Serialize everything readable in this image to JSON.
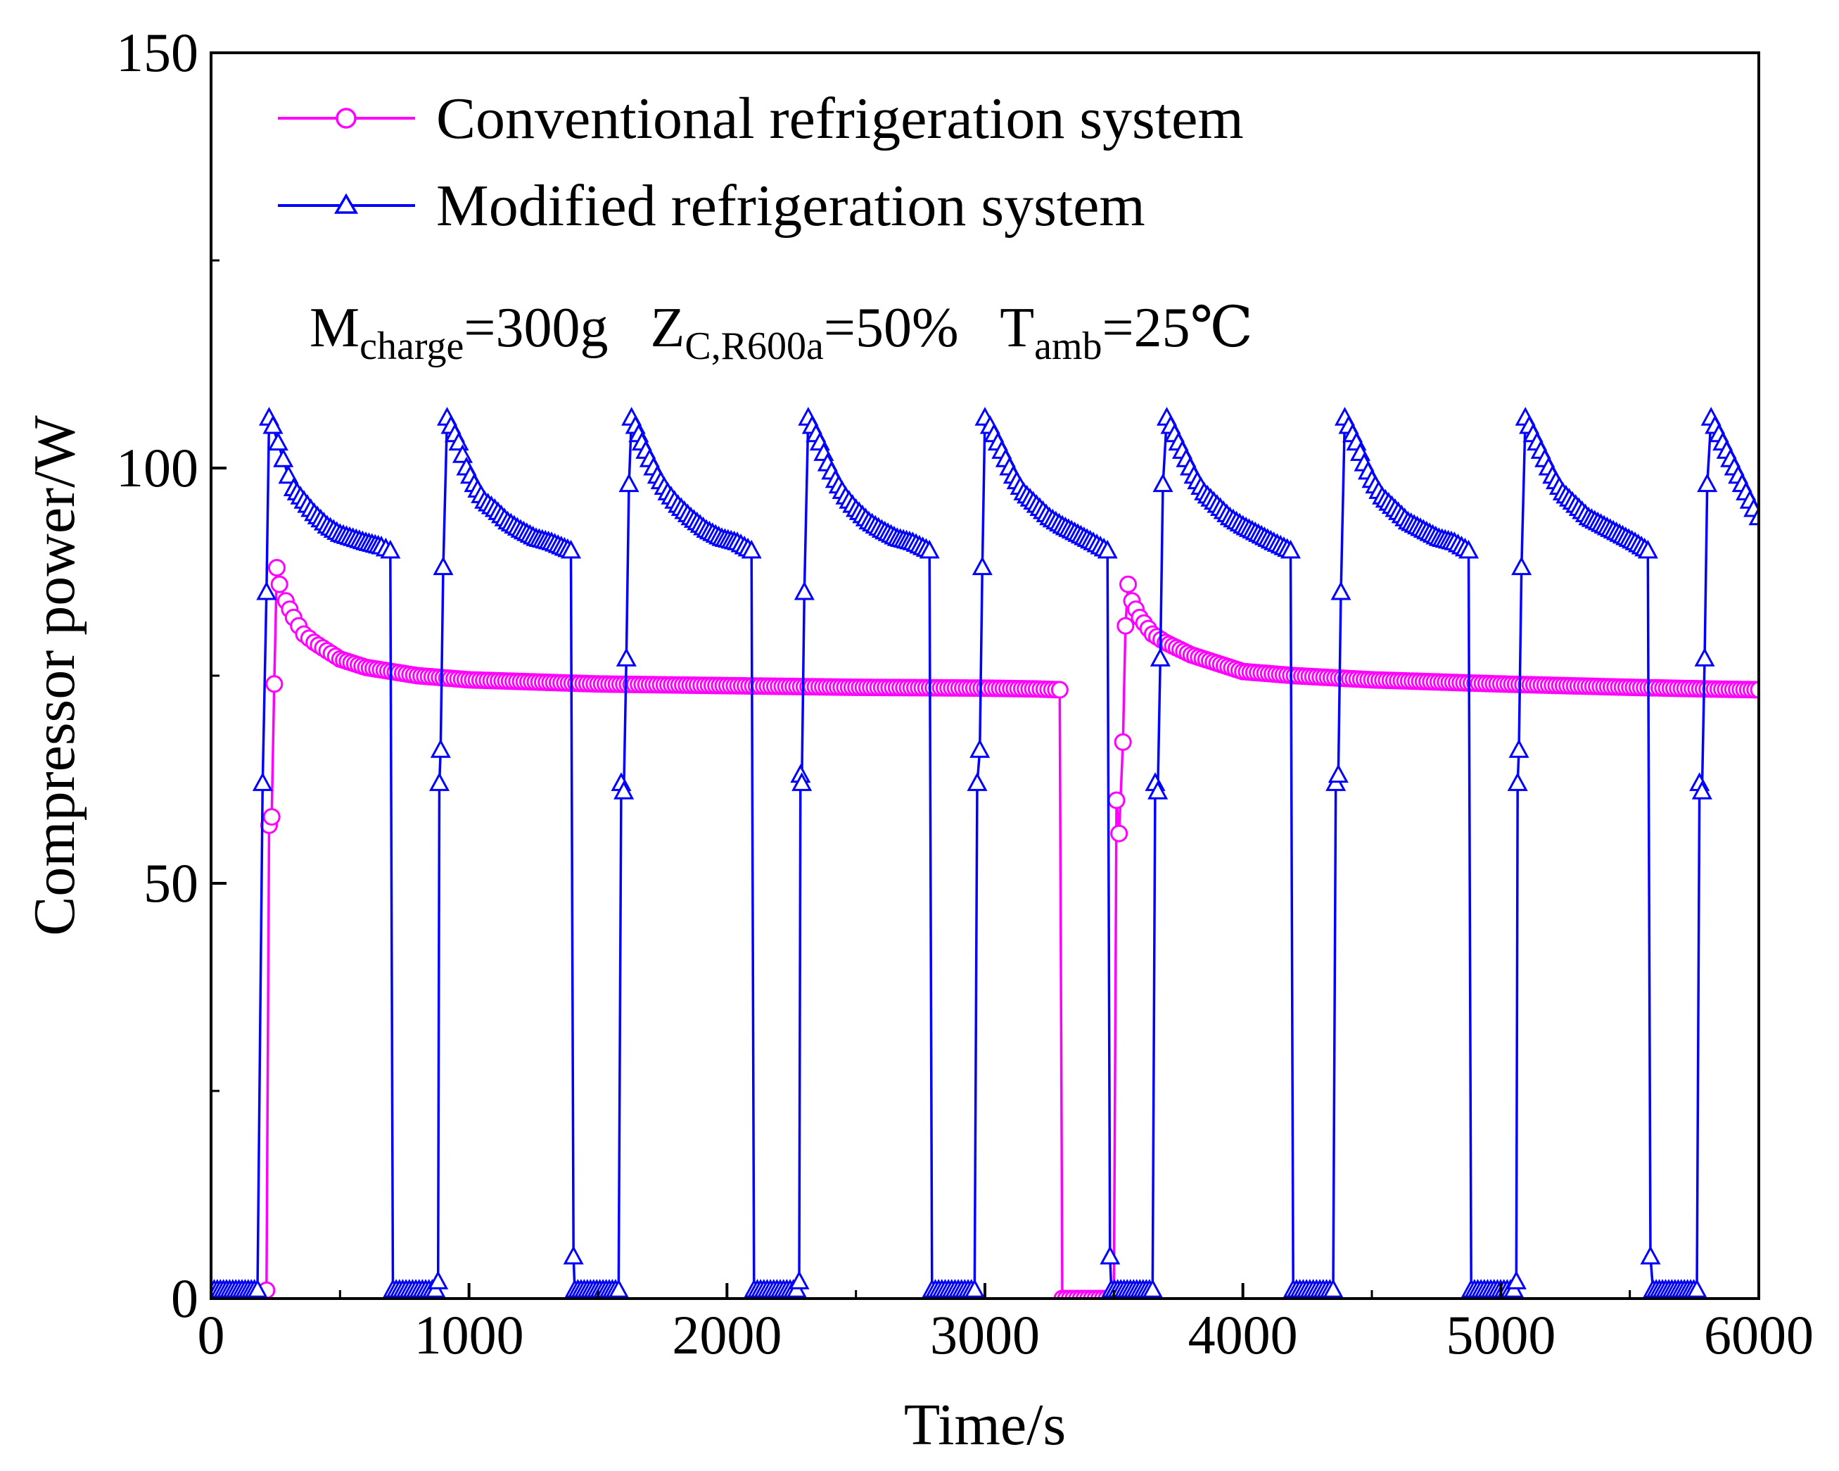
{
  "chart_data": {
    "type": "line",
    "title": "",
    "xlabel": "Time/s",
    "ylabel": "Compressor power/W",
    "xlim": [
      0,
      6000
    ],
    "ylim": [
      0,
      150
    ],
    "x_ticks": [
      0,
      1000,
      2000,
      3000,
      4000,
      5000,
      6000
    ],
    "x_tick_labels": [
      "0",
      "1000",
      "2000",
      "3000",
      "4000",
      "5000",
      "6000"
    ],
    "y_ticks": [
      0,
      50,
      100,
      150
    ],
    "y_tick_labels": [
      "0",
      "50",
      "100",
      "150"
    ],
    "legend_position": "top-left",
    "annotation": {
      "m_main": "M",
      "m_sub": "charge",
      "m_val": "=300g",
      "z_main": "Z",
      "z_sub": "C,R600a",
      "z_val": "=50%",
      "t_main": "T",
      "t_sub": "amb",
      "t_val": "=25℃"
    },
    "series": [
      {
        "name": "Conventional refrigeration system",
        "color": "#ff00ff",
        "marker": "circle",
        "points": [
          [
            0,
            0
          ],
          [
            200,
            0
          ],
          [
            215,
            1
          ],
          [
            225,
            57
          ],
          [
            235,
            58
          ],
          [
            245,
            74
          ],
          [
            255,
            88
          ],
          [
            265,
            86
          ],
          [
            290,
            84
          ],
          [
            320,
            82
          ],
          [
            360,
            80
          ],
          [
            400,
            79
          ],
          [
            450,
            78
          ],
          [
            500,
            77
          ],
          [
            600,
            76
          ],
          [
            700,
            75.5
          ],
          [
            800,
            75
          ],
          [
            1000,
            74.5
          ],
          [
            1200,
            74.3
          ],
          [
            1500,
            74
          ],
          [
            2000,
            73.8
          ],
          [
            2500,
            73.6
          ],
          [
            3000,
            73.5
          ],
          [
            3200,
            73.4
          ],
          [
            3290,
            73.3
          ],
          [
            3300,
            0
          ],
          [
            3500,
            0
          ],
          [
            3510,
            60
          ],
          [
            3520,
            56
          ],
          [
            3535,
            67
          ],
          [
            3545,
            81
          ],
          [
            3555,
            86
          ],
          [
            3570,
            84
          ],
          [
            3600,
            82
          ],
          [
            3650,
            80
          ],
          [
            3700,
            79
          ],
          [
            3800,
            77.5
          ],
          [
            3900,
            76.5
          ],
          [
            4000,
            75.5
          ],
          [
            4200,
            75
          ],
          [
            4500,
            74.5
          ],
          [
            5000,
            74
          ],
          [
            5500,
            73.6
          ],
          [
            5800,
            73.4
          ],
          [
            6000,
            73.3
          ]
        ]
      },
      {
        "name": "Modified refrigeration system",
        "color": "#0000ff",
        "marker": "triangle",
        "points": [
          [
            0,
            1
          ],
          [
            180,
            1
          ],
          [
            200,
            62
          ],
          [
            215,
            85
          ],
          [
            225,
            106
          ],
          [
            240,
            105
          ],
          [
            260,
            103
          ],
          [
            280,
            101
          ],
          [
            300,
            99
          ],
          [
            320,
            97.5
          ],
          [
            360,
            96
          ],
          [
            400,
            94.5
          ],
          [
            450,
            93
          ],
          [
            500,
            92
          ],
          [
            550,
            91.5
          ],
          [
            600,
            91
          ],
          [
            660,
            90.5
          ],
          [
            695,
            90
          ],
          [
            705,
            1
          ],
          [
            870,
            1
          ],
          [
            880,
            2
          ],
          [
            885,
            62
          ],
          [
            890,
            66
          ],
          [
            900,
            88
          ],
          [
            915,
            106
          ],
          [
            930,
            105
          ],
          [
            960,
            103
          ],
          [
            990,
            100
          ],
          [
            1020,
            98
          ],
          [
            1060,
            96
          ],
          [
            1100,
            95
          ],
          [
            1150,
            93.5
          ],
          [
            1200,
            92.5
          ],
          [
            1260,
            91.5
          ],
          [
            1320,
            91
          ],
          [
            1395,
            90
          ],
          [
            1405,
            5
          ],
          [
            1410,
            1
          ],
          [
            1580,
            1
          ],
          [
            1590,
            62
          ],
          [
            1600,
            61
          ],
          [
            1610,
            77
          ],
          [
            1620,
            98
          ],
          [
            1630,
            106
          ],
          [
            1645,
            105
          ],
          [
            1670,
            103
          ],
          [
            1700,
            101
          ],
          [
            1730,
            99
          ],
          [
            1770,
            97
          ],
          [
            1810,
            95.5
          ],
          [
            1860,
            94
          ],
          [
            1920,
            92.5
          ],
          [
            1980,
            91.5
          ],
          [
            2040,
            91
          ],
          [
            2095,
            90
          ],
          [
            2105,
            1
          ],
          [
            2270,
            1
          ],
          [
            2280,
            2
          ],
          [
            2285,
            63
          ],
          [
            2290,
            62
          ],
          [
            2300,
            85
          ],
          [
            2315,
            106
          ],
          [
            2330,
            105
          ],
          [
            2360,
            103
          ],
          [
            2390,
            100.5
          ],
          [
            2420,
            98.5
          ],
          [
            2460,
            96.5
          ],
          [
            2500,
            95
          ],
          [
            2550,
            93.5
          ],
          [
            2600,
            92.5
          ],
          [
            2660,
            91.5
          ],
          [
            2720,
            91
          ],
          [
            2785,
            90
          ],
          [
            2795,
            1
          ],
          [
            2960,
            1
          ],
          [
            2970,
            62
          ],
          [
            2980,
            66
          ],
          [
            2990,
            88
          ],
          [
            3000,
            106
          ],
          [
            3020,
            105
          ],
          [
            3050,
            103
          ],
          [
            3080,
            101
          ],
          [
            3110,
            99
          ],
          [
            3150,
            97
          ],
          [
            3200,
            95.5
          ],
          [
            3250,
            94
          ],
          [
            3300,
            93
          ],
          [
            3360,
            92
          ],
          [
            3420,
            91
          ],
          [
            3475,
            90
          ],
          [
            3485,
            5
          ],
          [
            3490,
            1
          ],
          [
            3650,
            1
          ],
          [
            3660,
            62
          ],
          [
            3670,
            61
          ],
          [
            3680,
            77
          ],
          [
            3690,
            98
          ],
          [
            3705,
            106
          ],
          [
            3720,
            105
          ],
          [
            3750,
            103
          ],
          [
            3780,
            101
          ],
          [
            3810,
            99
          ],
          [
            3850,
            97
          ],
          [
            3900,
            95.5
          ],
          [
            3950,
            94
          ],
          [
            4000,
            93
          ],
          [
            4060,
            92
          ],
          [
            4120,
            91
          ],
          [
            4185,
            90
          ],
          [
            4195,
            1
          ],
          [
            4350,
            1
          ],
          [
            4360,
            62
          ],
          [
            4370,
            63
          ],
          [
            4380,
            85
          ],
          [
            4395,
            106
          ],
          [
            4410,
            105
          ],
          [
            4440,
            103
          ],
          [
            4470,
            100.5
          ],
          [
            4500,
            98.5
          ],
          [
            4540,
            96.5
          ],
          [
            4590,
            95
          ],
          [
            4640,
            93.5
          ],
          [
            4700,
            92.5
          ],
          [
            4760,
            91.5
          ],
          [
            4820,
            91
          ],
          [
            4875,
            90
          ],
          [
            4885,
            1
          ],
          [
            5050,
            1
          ],
          [
            5060,
            2
          ],
          [
            5065,
            62
          ],
          [
            5070,
            66
          ],
          [
            5080,
            88
          ],
          [
            5095,
            106
          ],
          [
            5110,
            105
          ],
          [
            5140,
            103
          ],
          [
            5170,
            101
          ],
          [
            5200,
            99
          ],
          [
            5240,
            97
          ],
          [
            5290,
            95.5
          ],
          [
            5340,
            94
          ],
          [
            5400,
            93
          ],
          [
            5460,
            92
          ],
          [
            5520,
            91
          ],
          [
            5570,
            90
          ],
          [
            5580,
            5
          ],
          [
            5590,
            1
          ],
          [
            5760,
            1
          ],
          [
            5770,
            62
          ],
          [
            5780,
            61
          ],
          [
            5790,
            77
          ],
          [
            5800,
            98
          ],
          [
            5815,
            106
          ],
          [
            5830,
            105
          ],
          [
            5860,
            103
          ],
          [
            5890,
            101
          ],
          [
            5920,
            99
          ],
          [
            5950,
            97
          ],
          [
            5980,
            95
          ],
          [
            6000,
            94
          ]
        ]
      }
    ]
  }
}
